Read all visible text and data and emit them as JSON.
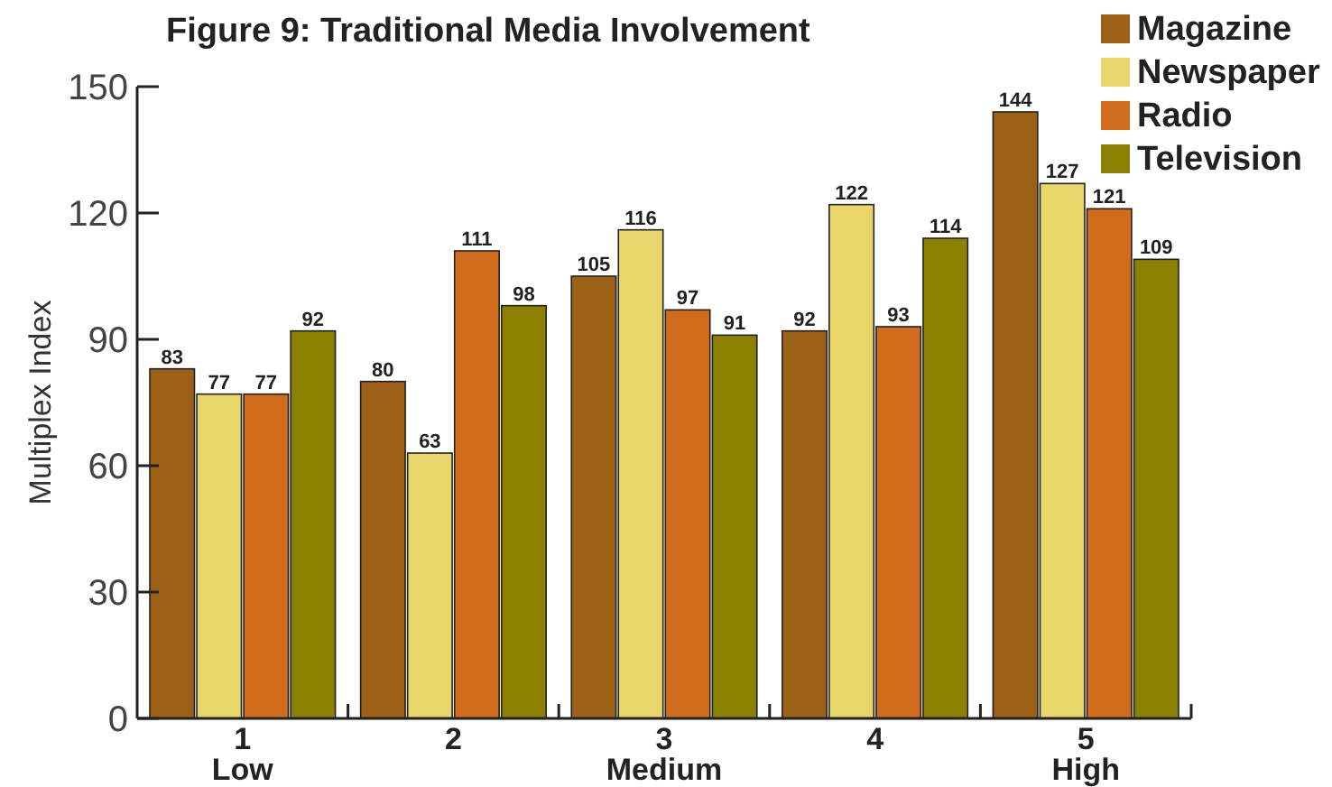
{
  "chart_data": {
    "type": "bar",
    "title": "Figure 9: Traditional Media Involvement",
    "ylabel": "Multiplex Index",
    "categories": [
      "1\nLow",
      "2",
      "3\nMedium",
      "4",
      "5\nHigh"
    ],
    "series": [
      {
        "name": "Magazine",
        "color": "#9c6016",
        "values": [
          83,
          80,
          105,
          92,
          144
        ]
      },
      {
        "name": "Newspaper",
        "color": "#e9d66b",
        "values": [
          77,
          63,
          116,
          122,
          127
        ]
      },
      {
        "name": "Radio",
        "color": "#d06c1b",
        "values": [
          77,
          111,
          97,
          93,
          121
        ]
      },
      {
        "name": "Television",
        "color": "#8b8000",
        "values": [
          92,
          98,
          91,
          114,
          109
        ]
      }
    ],
    "ylim": [
      0,
      150
    ],
    "yticks": [
      0,
      30,
      60,
      90,
      120,
      150
    ],
    "grid": false,
    "legend": "top right",
    "data_labels": true
  }
}
